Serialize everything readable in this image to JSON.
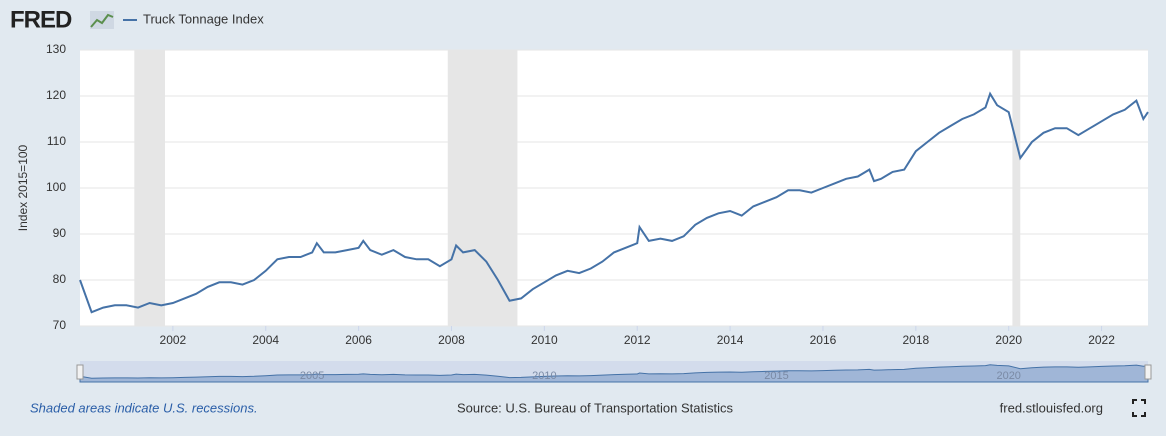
{
  "chart_data": {
    "type": "line",
    "logo": "FRED",
    "y_label": "Index 2015=100",
    "note": "Shaded areas indicate U.S. recessions.",
    "source": "Source: U.S. Bureau of Transportation Statistics",
    "site": "fred.stlouisfed.org",
    "x": [
      2000,
      2000.25,
      2000.5,
      2000.75,
      2001,
      2001.25,
      2001.5,
      2001.75,
      2002,
      2002.25,
      2002.5,
      2002.75,
      2003,
      2003.25,
      2003.5,
      2003.75,
      2004,
      2004.25,
      2004.5,
      2004.75,
      2005,
      2005.1,
      2005.25,
      2005.5,
      2005.75,
      2006,
      2006.1,
      2006.25,
      2006.5,
      2006.75,
      2007,
      2007.25,
      2007.5,
      2007.75,
      2008,
      2008.1,
      2008.25,
      2008.5,
      2008.75,
      2009,
      2009.25,
      2009.5,
      2009.75,
      2010,
      2010.25,
      2010.5,
      2010.75,
      2011,
      2011.25,
      2011.5,
      2011.75,
      2012,
      2012.05,
      2012.25,
      2012.5,
      2012.75,
      2013,
      2013.25,
      2013.5,
      2013.75,
      2014,
      2014.25,
      2014.5,
      2014.75,
      2015,
      2015.25,
      2015.5,
      2015.75,
      2016,
      2016.25,
      2016.5,
      2016.75,
      2017,
      2017.1,
      2017.25,
      2017.5,
      2017.75,
      2018,
      2018.25,
      2018.5,
      2018.75,
      2019,
      2019.25,
      2019.5,
      2019.6,
      2019.75,
      2020,
      2020.25,
      2020.5,
      2020.75,
      2021,
      2021.25,
      2021.5,
      2021.75,
      2022,
      2022.25,
      2022.5,
      2022.75,
      2022.9,
      2023
    ],
    "series": [
      {
        "name": "Truck Tonnage Index",
        "color": "#4572a7",
        "values": [
          80,
          73,
          74,
          74.5,
          74.5,
          74,
          75,
          74.5,
          75,
          76,
          77,
          78.5,
          79.5,
          79.5,
          79,
          80,
          82,
          84.5,
          85,
          85,
          86,
          88,
          86,
          86,
          86.5,
          87,
          88.5,
          86.5,
          85.5,
          86.5,
          85,
          84.5,
          84.5,
          83,
          84.5,
          87.5,
          86,
          86.5,
          84,
          80,
          75.5,
          76,
          78,
          79.5,
          81,
          82,
          81.5,
          82.5,
          84,
          86,
          87,
          88,
          91.5,
          88.5,
          89,
          88.5,
          89.5,
          92,
          93.5,
          94.5,
          95,
          94,
          96,
          97,
          98,
          99.5,
          99.5,
          99,
          100,
          101,
          102,
          102.5,
          104,
          101.5,
          102,
          103.5,
          104,
          108,
          110,
          112,
          113.5,
          115,
          116,
          117.5,
          120.5,
          118,
          116.5,
          106.5,
          110,
          112,
          113,
          113,
          111.5,
          113,
          114.5,
          116,
          117,
          119,
          115,
          116.5
        ]
      }
    ],
    "recessions": [
      [
        2001.17,
        2001.83
      ],
      [
        2007.92,
        2009.42
      ],
      [
        2020.08,
        2020.25
      ]
    ],
    "xlim": [
      2000,
      2023
    ],
    "ylim": [
      70,
      130
    ],
    "xticks": [
      2002,
      2004,
      2006,
      2008,
      2010,
      2012,
      2014,
      2016,
      2018,
      2020,
      2022
    ],
    "yticks": [
      70,
      80,
      90,
      100,
      110,
      120,
      130
    ],
    "navigator_xticks": [
      2005,
      2010,
      2015,
      2020
    ],
    "recession_color": "#e6e6e6"
  }
}
